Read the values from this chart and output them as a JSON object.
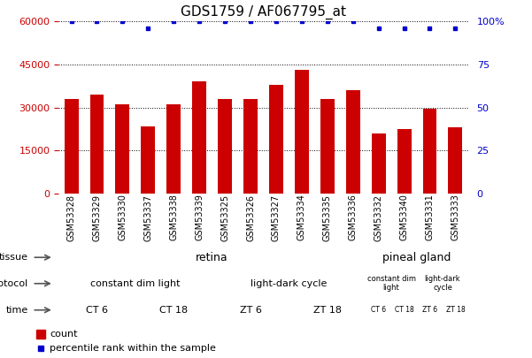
{
  "title": "GDS1759 / AF067795_at",
  "samples": [
    "GSM53328",
    "GSM53329",
    "GSM53330",
    "GSM53337",
    "GSM53338",
    "GSM53339",
    "GSM53325",
    "GSM53326",
    "GSM53327",
    "GSM53334",
    "GSM53335",
    "GSM53336",
    "GSM53332",
    "GSM53340",
    "GSM53331",
    "GSM53333"
  ],
  "counts": [
    33000,
    34500,
    31000,
    23500,
    31000,
    39000,
    33000,
    33000,
    38000,
    43000,
    33000,
    36000,
    21000,
    22500,
    29500,
    23000
  ],
  "percentile_vals": [
    100,
    100,
    100,
    96,
    100,
    100,
    100,
    100,
    100,
    100,
    100,
    100,
    96,
    96,
    96,
    96
  ],
  "ylim_left": [
    0,
    60000
  ],
  "ylim_right": [
    0,
    100
  ],
  "yticks_left": [
    0,
    15000,
    30000,
    45000,
    60000
  ],
  "yticks_right": [
    0,
    25,
    50,
    75,
    100
  ],
  "bar_color": "#cc0000",
  "dot_color": "#0000cc",
  "tissue_bands": [
    {
      "label": "retina",
      "start": 0,
      "end": 12,
      "color": "#bbffbb"
    },
    {
      "label": "pineal gland",
      "start": 12,
      "end": 16,
      "color": "#44dd44"
    }
  ],
  "protocol_bands": [
    {
      "label": "constant dim light",
      "start": 0,
      "end": 6,
      "color": "#ccccff"
    },
    {
      "label": "light-dark cycle",
      "start": 6,
      "end": 12,
      "color": "#9999dd"
    },
    {
      "label": "constant dim\nlight",
      "start": 12,
      "end": 14,
      "color": "#ccccff"
    },
    {
      "label": "light-dark\ncycle",
      "start": 14,
      "end": 16,
      "color": "#9999dd"
    }
  ],
  "time_bands": [
    {
      "label": "CT 6",
      "start": 0,
      "end": 3,
      "color": "#ffdddd"
    },
    {
      "label": "CT 18",
      "start": 3,
      "end": 6,
      "color": "#ffbbbb"
    },
    {
      "label": "ZT 6",
      "start": 6,
      "end": 9,
      "color": "#ff9999"
    },
    {
      "label": "ZT 18",
      "start": 9,
      "end": 12,
      "color": "#ee7777"
    },
    {
      "label": "CT 6",
      "start": 12,
      "end": 13,
      "color": "#ffdddd"
    },
    {
      "label": "CT 18",
      "start": 13,
      "end": 14,
      "color": "#ffbbbb"
    },
    {
      "label": "ZT 6",
      "start": 14,
      "end": 15,
      "color": "#ff9999"
    },
    {
      "label": "ZT 18",
      "start": 15,
      "end": 16,
      "color": "#ee7777"
    }
  ],
  "row_labels": [
    "tissue",
    "protocol",
    "time"
  ],
  "legend_count_color": "#cc0000",
  "legend_pct_color": "#0000cc",
  "bg_color": "#ffffff",
  "xticklabel_fontsize": 7,
  "title_fontsize": 11,
  "n_samples": 16
}
